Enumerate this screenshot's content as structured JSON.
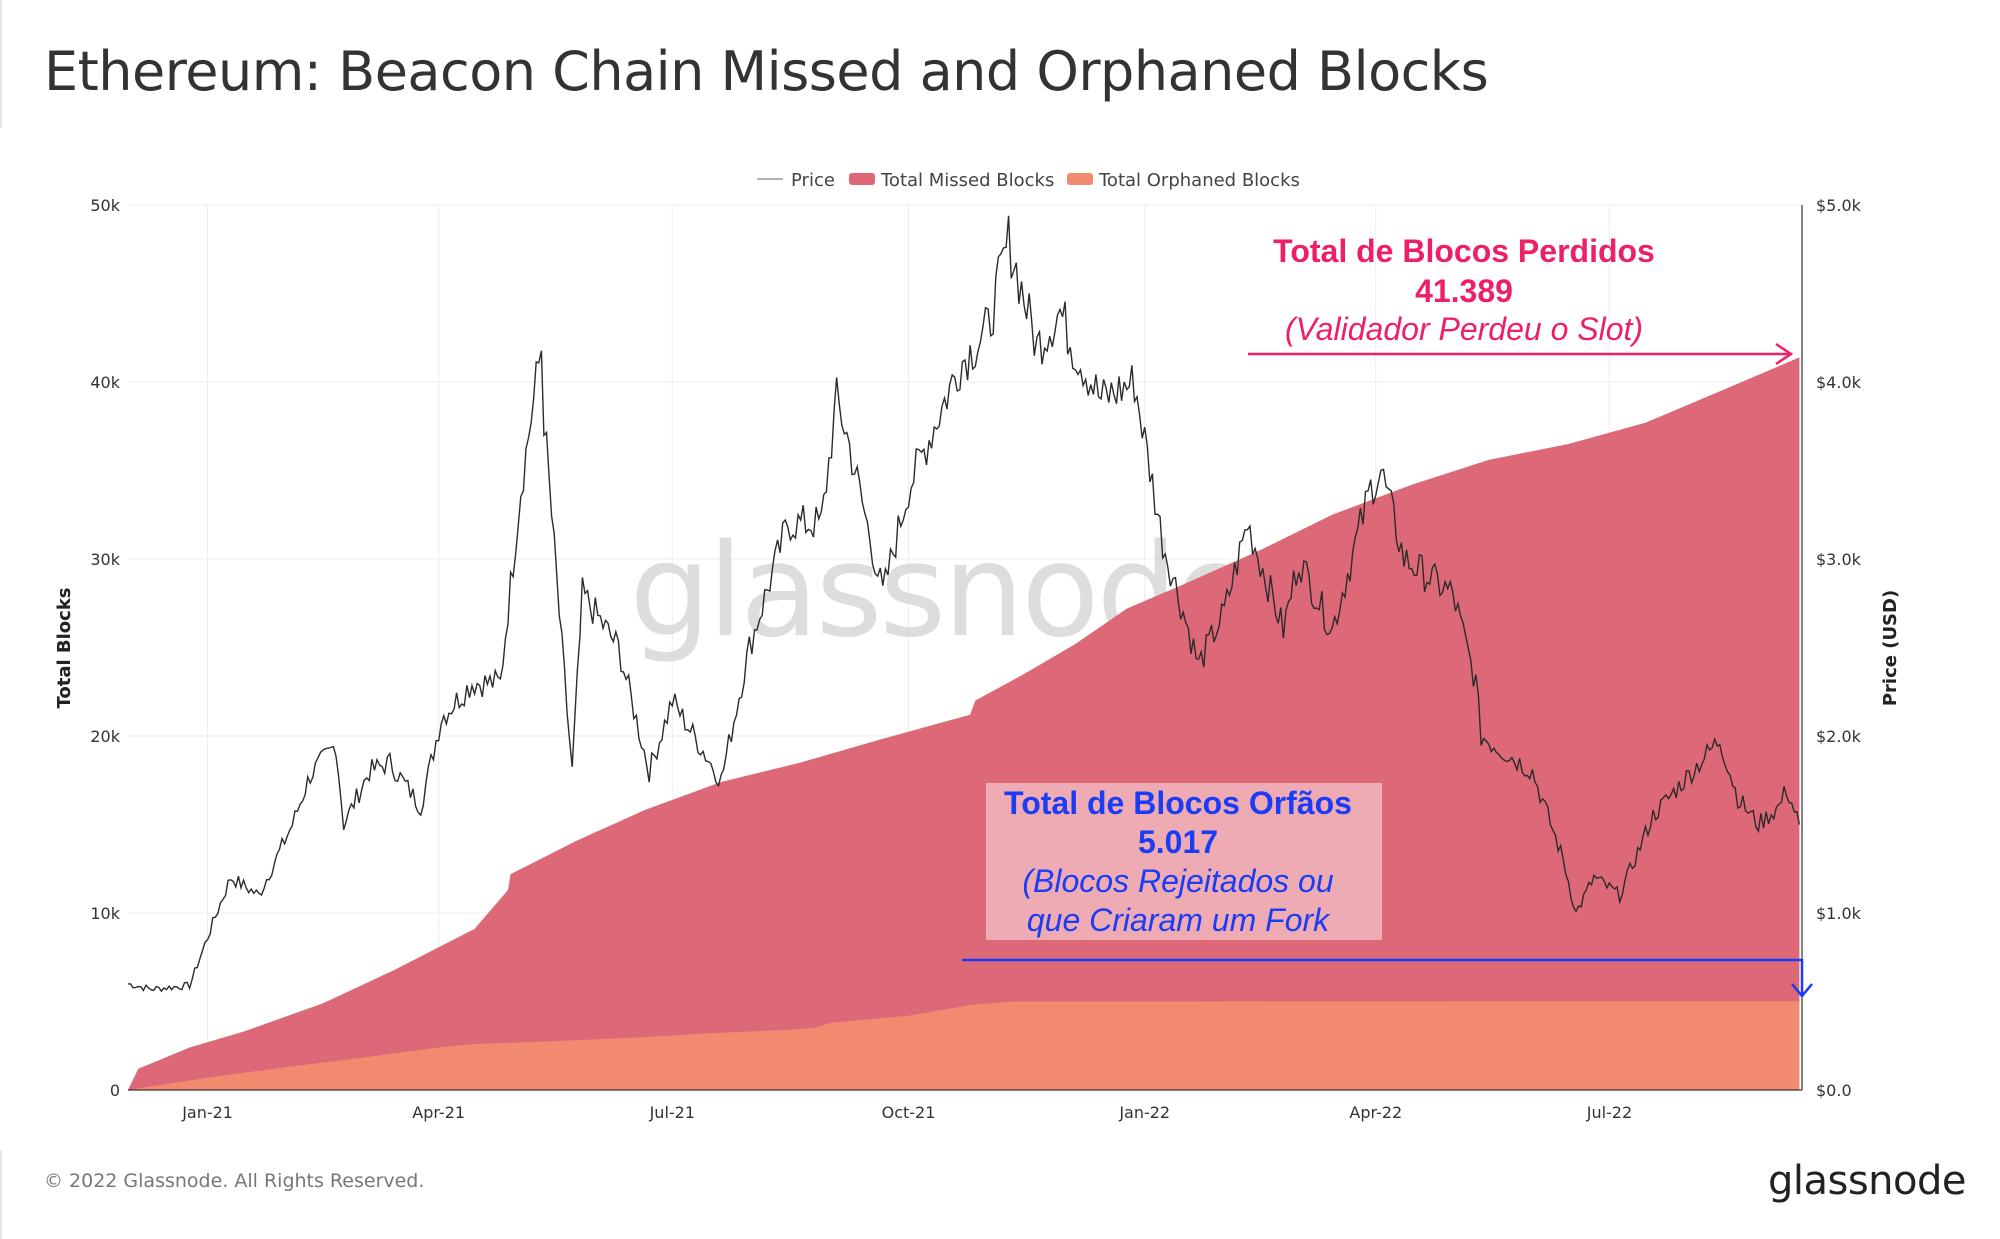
{
  "title": "Ethereum: Beacon Chain Missed and Orphaned Blocks",
  "footer": {
    "copyright": "© 2022 Glassnode. All Rights Reserved.",
    "brand": "glassnode"
  },
  "watermark": "glassnode",
  "colors": {
    "missed": "#dc6878",
    "orphaned": "#f28a70",
    "price": "#2b2b2b",
    "annot_pink": "#ef1f66",
    "annot_blue": "#1a3cf5",
    "annot_box": "#f0b0b8"
  },
  "annotations": {
    "missed": {
      "title": "Total de Blocos Perdidos",
      "value": "41.389",
      "note": "(Validador Perdeu o Slot)"
    },
    "orphaned": {
      "title": "Total de Blocos Orfãos",
      "value": "5.017",
      "note1": "(Blocos Rejeitados ou",
      "note2": "que Criaram um Fork"
    }
  },
  "chart_data": {
    "type": "area",
    "legend_position": "top",
    "grid": true,
    "x_start": "2020-12-01",
    "x_end": "2022-09-14",
    "x_ticks": [
      {
        "date": "2021-01-01",
        "label": "Jan-21"
      },
      {
        "date": "2021-04-01",
        "label": "Apr-21"
      },
      {
        "date": "2021-07-01",
        "label": "Jul-21"
      },
      {
        "date": "2021-10-01",
        "label": "Oct-21"
      },
      {
        "date": "2022-01-01",
        "label": "Jan-22"
      },
      {
        "date": "2022-04-01",
        "label": "Apr-22"
      },
      {
        "date": "2022-07-01",
        "label": "Jul-22"
      }
    ],
    "y_left": {
      "label": "Total Blocks",
      "range": [
        0,
        50000
      ],
      "ticks": [
        {
          "v": 0,
          "label": "0"
        },
        {
          "v": 10000,
          "label": "10k"
        },
        {
          "v": 20000,
          "label": "20k"
        },
        {
          "v": 30000,
          "label": "30k"
        },
        {
          "v": 40000,
          "label": "40k"
        },
        {
          "v": 50000,
          "label": "50k"
        }
      ]
    },
    "y_right": {
      "label": "Price (USD)",
      "range": [
        0,
        5000
      ],
      "ticks": [
        {
          "v": 0,
          "label": "$0.0"
        },
        {
          "v": 1000,
          "label": "$1.0k"
        },
        {
          "v": 2000,
          "label": "$2.0k"
        },
        {
          "v": 3000,
          "label": "$3.0k"
        },
        {
          "v": 4000,
          "label": "$4.0k"
        },
        {
          "v": 5000,
          "label": "$5.0k"
        }
      ]
    },
    "series": [
      {
        "name": "Price",
        "type": "line",
        "axis": "right",
        "points": [
          [
            "2020-12-01",
            600
          ],
          [
            "2020-12-10",
            570
          ],
          [
            "2020-12-25",
            590
          ],
          [
            "2021-01-04",
            980
          ],
          [
            "2021-01-10",
            1200
          ],
          [
            "2021-01-21",
            1100
          ],
          [
            "2021-02-03",
            1500
          ],
          [
            "2021-02-10",
            1780
          ],
          [
            "2021-02-20",
            1950
          ],
          [
            "2021-02-23",
            1500
          ],
          [
            "2021-03-05",
            1800
          ],
          [
            "2021-03-13",
            1850
          ],
          [
            "2021-03-25",
            1600
          ],
          [
            "2021-04-02",
            2100
          ],
          [
            "2021-04-14",
            2300
          ],
          [
            "2021-04-25",
            2300
          ],
          [
            "2021-05-03",
            3400
          ],
          [
            "2021-05-11",
            4200
          ],
          [
            "2021-05-12",
            3800
          ],
          [
            "2021-05-19",
            2500
          ],
          [
            "2021-05-23",
            1800
          ],
          [
            "2021-05-27",
            2800
          ],
          [
            "2021-06-10",
            2500
          ],
          [
            "2021-06-22",
            1800
          ],
          [
            "2021-07-01",
            2200
          ],
          [
            "2021-07-20",
            1750
          ],
          [
            "2021-07-31",
            2500
          ],
          [
            "2021-08-15",
            3200
          ],
          [
            "2021-08-28",
            3200
          ],
          [
            "2021-09-03",
            3900
          ],
          [
            "2021-09-07",
            3700
          ],
          [
            "2021-09-21",
            2800
          ],
          [
            "2021-10-01",
            3400
          ],
          [
            "2021-10-21",
            4100
          ],
          [
            "2021-11-01",
            4300
          ],
          [
            "2021-11-09",
            4800
          ],
          [
            "2021-11-20",
            4200
          ],
          [
            "2021-11-29",
            4400
          ],
          [
            "2021-12-04",
            4200
          ],
          [
            "2021-12-15",
            3900
          ],
          [
            "2021-12-28",
            4000
          ],
          [
            "2022-01-08",
            3100
          ],
          [
            "2022-01-22",
            2400
          ],
          [
            "2022-02-01",
            2700
          ],
          [
            "2022-02-10",
            3200
          ],
          [
            "2022-02-24",
            2600
          ],
          [
            "2022-03-02",
            3000
          ],
          [
            "2022-03-15",
            2600
          ],
          [
            "2022-03-30",
            3400
          ],
          [
            "2022-04-03",
            3500
          ],
          [
            "2022-04-12",
            3000
          ],
          [
            "2022-05-01",
            2800
          ],
          [
            "2022-05-10",
            2300
          ],
          [
            "2022-05-12",
            2000
          ],
          [
            "2022-06-01",
            1800
          ],
          [
            "2022-06-13",
            1300
          ],
          [
            "2022-06-18",
            1000
          ],
          [
            "2022-06-25",
            1200
          ],
          [
            "2022-07-05",
            1100
          ],
          [
            "2022-07-18",
            1550
          ],
          [
            "2022-08-13",
            1980
          ],
          [
            "2022-08-20",
            1650
          ],
          [
            "2022-08-28",
            1500
          ],
          [
            "2022-09-05",
            1600
          ],
          [
            "2022-09-08",
            1700
          ],
          [
            "2022-09-13",
            1500
          ]
        ]
      },
      {
        "name": "Total Missed Blocks",
        "type": "area",
        "axis": "left",
        "points": [
          [
            "2020-12-01",
            0
          ],
          [
            "2020-12-05",
            1200
          ],
          [
            "2020-12-25",
            2400
          ],
          [
            "2021-01-15",
            3300
          ],
          [
            "2021-02-15",
            4900
          ],
          [
            "2021-03-15",
            6800
          ],
          [
            "2021-04-15",
            9100
          ],
          [
            "2021-04-28",
            11300
          ],
          [
            "2021-04-29",
            12200
          ],
          [
            "2021-05-25",
            14100
          ],
          [
            "2021-06-20",
            15800
          ],
          [
            "2021-07-20",
            17400
          ],
          [
            "2021-08-20",
            18500
          ],
          [
            "2021-09-20",
            19800
          ],
          [
            "2021-10-15",
            20800
          ],
          [
            "2021-10-25",
            21200
          ],
          [
            "2021-10-27",
            22000
          ],
          [
            "2021-11-15",
            23500
          ],
          [
            "2021-12-05",
            25200
          ],
          [
            "2021-12-25",
            27200
          ],
          [
            "2022-01-15",
            28500
          ],
          [
            "2022-02-15",
            30500
          ],
          [
            "2022-03-15",
            32500
          ],
          [
            "2022-04-15",
            34200
          ],
          [
            "2022-05-15",
            35600
          ],
          [
            "2022-06-15",
            36500
          ],
          [
            "2022-07-15",
            37700
          ],
          [
            "2022-08-15",
            39600
          ],
          [
            "2022-09-13",
            41389
          ]
        ]
      },
      {
        "name": "Total Orphaned Blocks",
        "type": "area",
        "axis": "left",
        "points": [
          [
            "2020-12-01",
            0
          ],
          [
            "2021-01-01",
            700
          ],
          [
            "2021-02-01",
            1300
          ],
          [
            "2021-03-01",
            1800
          ],
          [
            "2021-04-01",
            2400
          ],
          [
            "2021-04-15",
            2600
          ],
          [
            "2021-05-15",
            2750
          ],
          [
            "2021-06-15",
            2950
          ],
          [
            "2021-07-15",
            3200
          ],
          [
            "2021-08-15",
            3400
          ],
          [
            "2021-08-25",
            3500
          ],
          [
            "2021-09-01",
            3800
          ],
          [
            "2021-10-01",
            4200
          ],
          [
            "2021-10-25",
            4800
          ],
          [
            "2021-11-10",
            5000
          ],
          [
            "2022-09-13",
            5017
          ]
        ]
      }
    ]
  }
}
